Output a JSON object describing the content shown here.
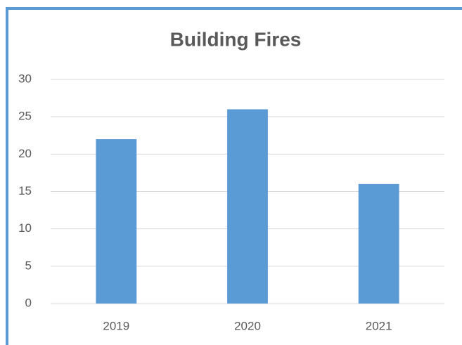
{
  "chart_data": {
    "type": "bar",
    "title": "Building Fires",
    "categories": [
      "2019",
      "2020",
      "2021"
    ],
    "values": [
      22,
      26,
      16
    ],
    "color": "#5b9bd5",
    "ylim": [
      0,
      30
    ],
    "yticks": [
      0,
      5,
      10,
      15,
      20,
      25,
      30
    ],
    "grid": true
  }
}
